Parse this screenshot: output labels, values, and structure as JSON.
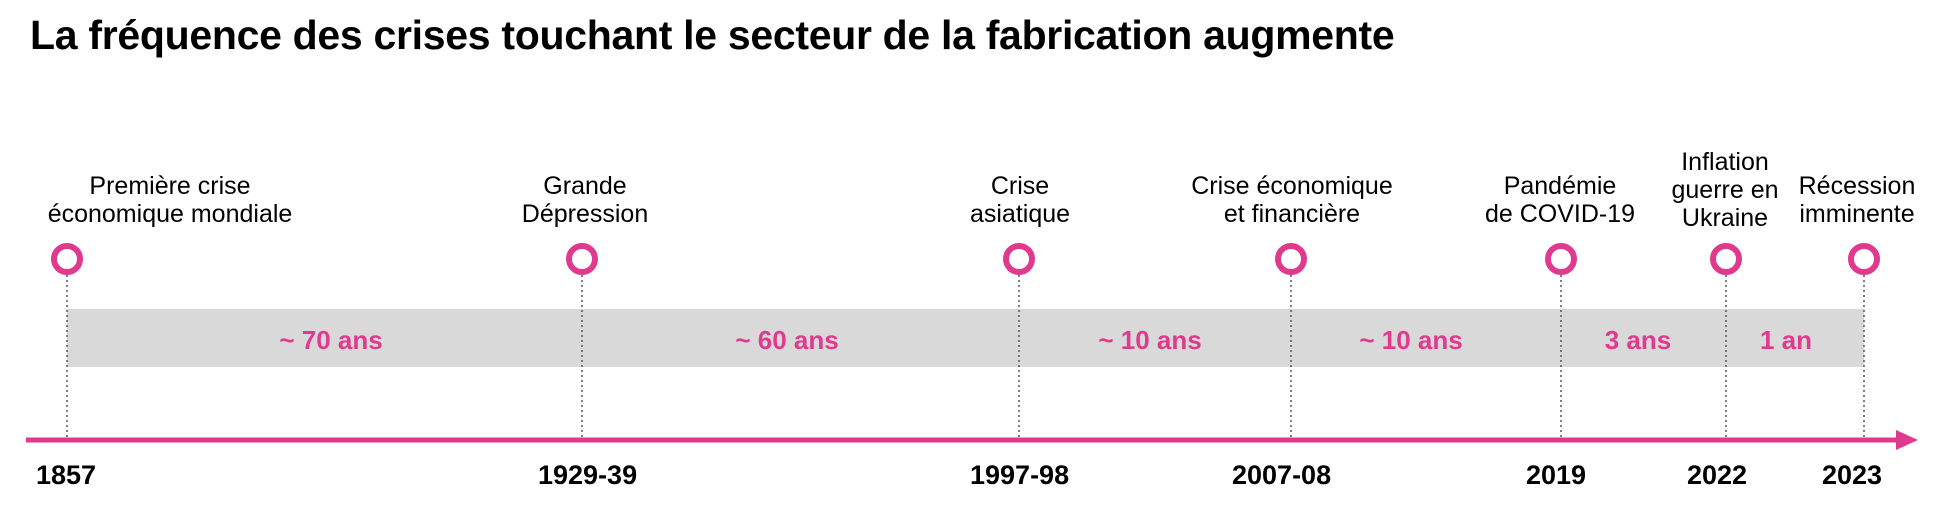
{
  "title": "La fréquence des crises touchant le secteur de la fabrication augmente",
  "colors": {
    "accent": "#e03a8f",
    "band": "#d9d9d9",
    "text": "#000000"
  },
  "events": [
    {
      "year": "1857",
      "label": [
        "Première crise",
        "économique mondiale"
      ]
    },
    {
      "year": "1929-39",
      "label": [
        "Grande",
        "Dépression"
      ]
    },
    {
      "year": "1997-98",
      "label": [
        "Crise",
        "asiatique"
      ]
    },
    {
      "year": "2007-08",
      "label": [
        "Crise économique",
        "et financière"
      ]
    },
    {
      "year": "2019",
      "label": [
        "Pandémie",
        "de COVID-19"
      ]
    },
    {
      "year": "2022",
      "label": [
        "Inflation",
        "guerre en",
        "Ukraine"
      ]
    },
    {
      "year": "2023",
      "label": [
        "Récession",
        "imminente"
      ]
    }
  ],
  "intervals": [
    "~ 70 ans",
    "~ 60 ans",
    "~ 10 ans",
    "~ 10 ans",
    "3 ans",
    "1 an"
  ]
}
